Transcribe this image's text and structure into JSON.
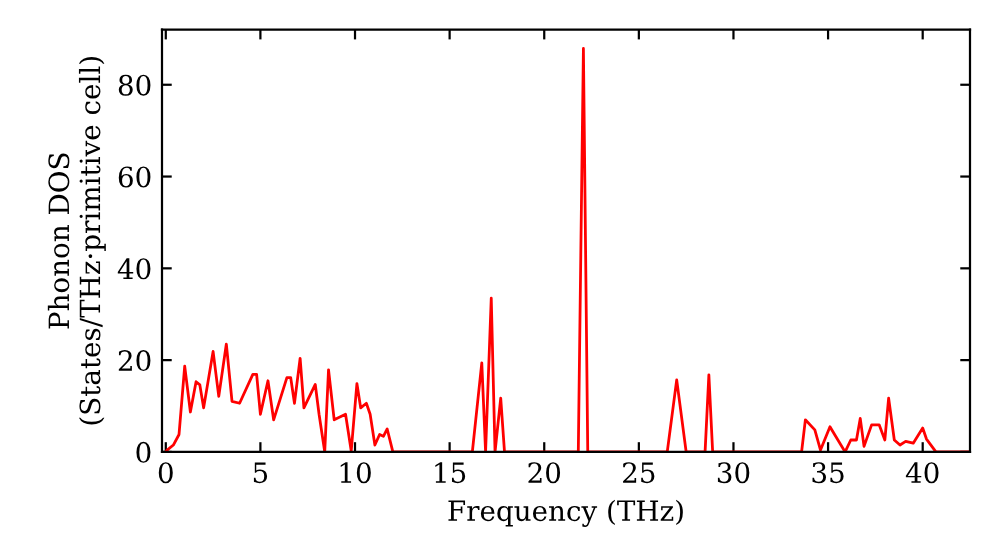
{
  "chart_data": {
    "type": "line",
    "xlabel": "Frequency (THz)",
    "ylabel": "Phonon DOS\n(States/THz·primitive cell)",
    "xlim": [
      -0.2,
      42.5
    ],
    "ylim": [
      0,
      92
    ],
    "xticks": [
      0,
      5,
      10,
      15,
      20,
      25,
      30,
      35,
      40
    ],
    "yticks": [
      0,
      20,
      40,
      60,
      80
    ],
    "grid": false,
    "legend": false,
    "line_style": "solid",
    "marker": "none",
    "series": [
      {
        "color": "#ff0000",
        "x": [
          0.0,
          0.07,
          0.4,
          0.7,
          1.0,
          1.3,
          1.6,
          1.8,
          2.0,
          2.5,
          2.8,
          3.2,
          3.5,
          3.9,
          4.6,
          4.8,
          5.0,
          5.4,
          5.7,
          6.4,
          6.6,
          6.8,
          7.1,
          7.3,
          7.9,
          8.1,
          8.4,
          8.6,
          8.9,
          9.5,
          9.8,
          10.1,
          10.3,
          10.6,
          10.8,
          11.05,
          11.3,
          11.5,
          11.7,
          12.0,
          16.2,
          16.7,
          16.9,
          17.2,
          17.4,
          17.7,
          17.9,
          21.8,
          22.07,
          22.3,
          26.5,
          27.0,
          27.5,
          28.5,
          28.7,
          28.9,
          33.6,
          33.8,
          34.3,
          34.6,
          35.1,
          35.4,
          35.9,
          36.2,
          36.5,
          36.7,
          36.9,
          37.3,
          37.7,
          38.0,
          38.2,
          38.5,
          38.8,
          39.1,
          39.5,
          40.0,
          40.2,
          40.7,
          42.5
        ],
        "values": [
          0,
          0.4,
          1.5,
          3.8,
          18.7,
          8.7,
          15.3,
          14.6,
          9.6,
          21.9,
          12.1,
          23.5,
          11,
          10.6,
          16.9,
          16.9,
          8.2,
          15.5,
          7,
          16.2,
          16.2,
          10.6,
          20.4,
          9.6,
          14.7,
          8.2,
          0,
          17.9,
          7,
          8.2,
          0.2,
          14.9,
          9.6,
          10.6,
          8.2,
          1.5,
          3.8,
          3.4,
          5,
          0,
          0,
          19.4,
          0,
          33.5,
          0,
          11.7,
          0,
          0,
          87.9,
          0,
          0,
          15.7,
          0,
          0,
          16.8,
          0,
          0,
          7,
          4.8,
          0.4,
          5.5,
          3.4,
          0,
          2.6,
          2.6,
          7.3,
          1.2,
          5.9,
          5.9,
          2.6,
          11.7,
          2.6,
          1.5,
          2.3,
          1.9,
          5.2,
          2.8,
          0,
          0
        ]
      }
    ]
  }
}
